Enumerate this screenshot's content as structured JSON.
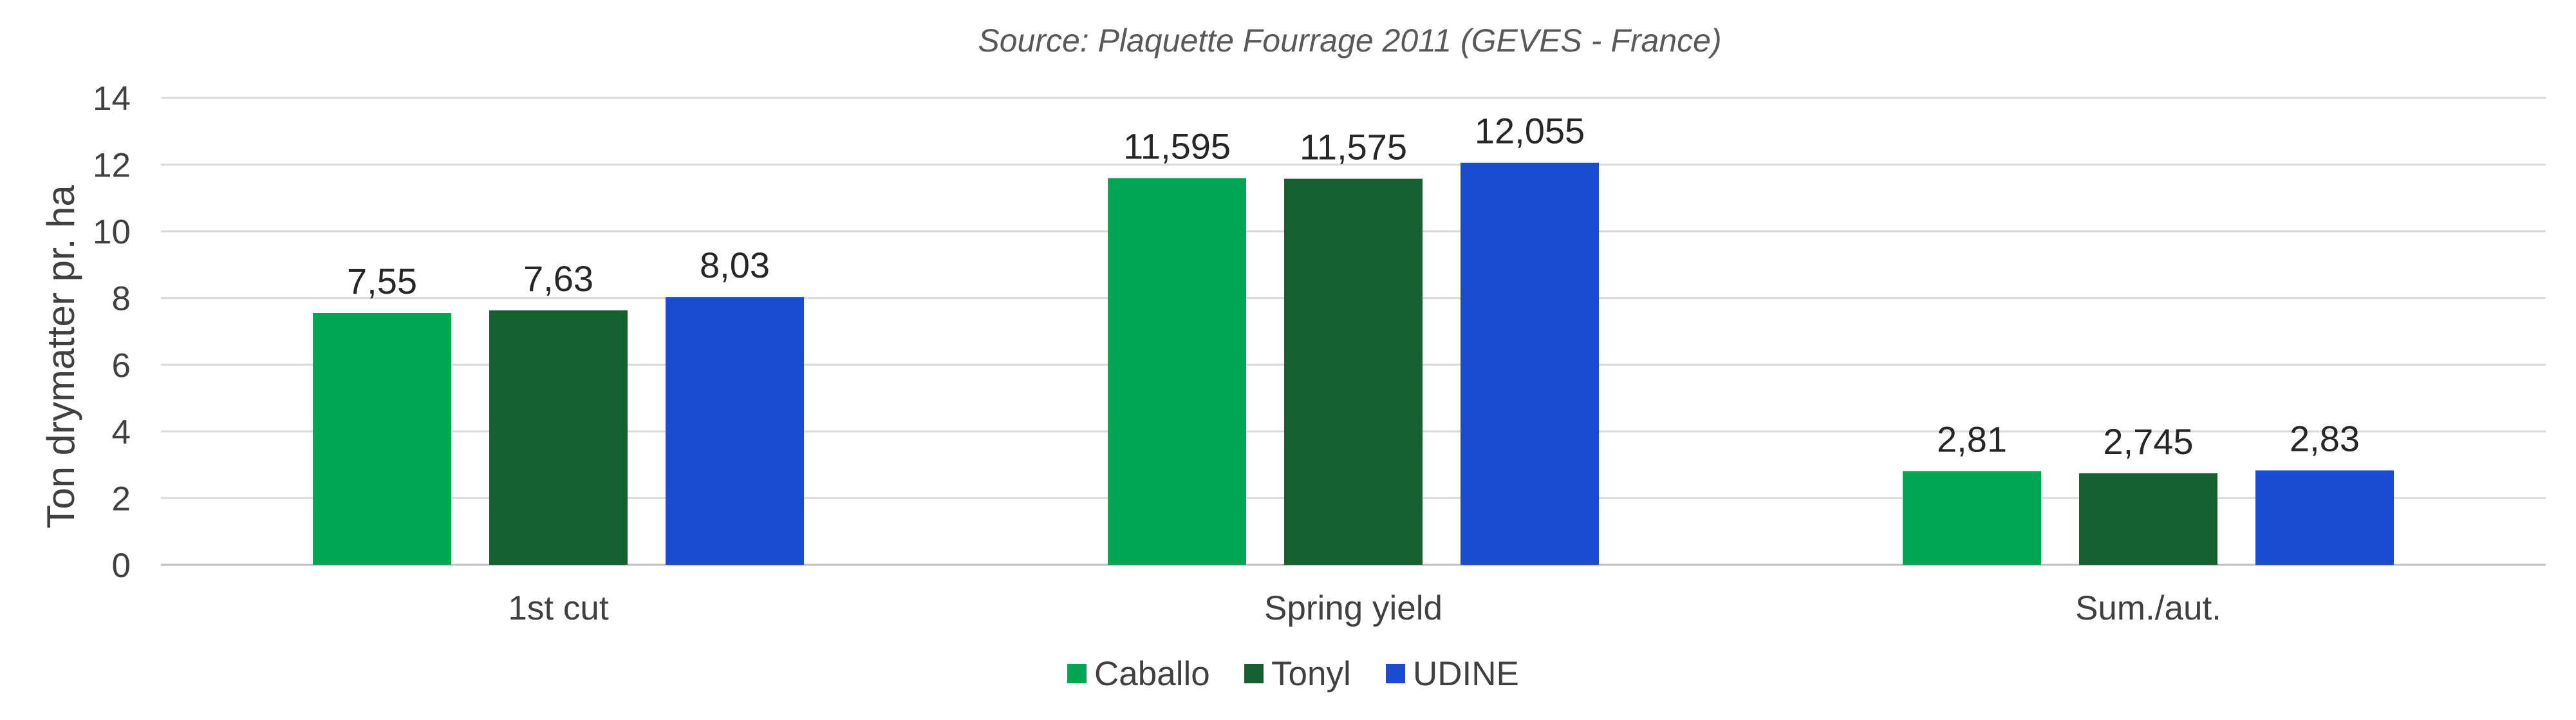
{
  "chart_data": {
    "type": "bar",
    "title": "Source: Plaquette Fourrage 2011 (GEVES - France)",
    "xlabel": "",
    "ylabel": "Ton drymatter pr. ha",
    "ylim": [
      0,
      14
    ],
    "yticks": [
      0,
      2,
      4,
      6,
      8,
      10,
      12,
      14
    ],
    "grid": true,
    "legend_position": "bottom",
    "categories": [
      "1st cut",
      "Spring yield",
      "Sum./aut."
    ],
    "series": [
      {
        "name": "Caballo",
        "color": "#00a651",
        "values": [
          7.55,
          11.595,
          2.81
        ],
        "labels": [
          "7,55",
          "11,595",
          "2,81"
        ]
      },
      {
        "name": "Tonyl",
        "color": "#15602e",
        "values": [
          7.63,
          11.575,
          2.745
        ],
        "labels": [
          "7,63",
          "11,575",
          "2,745"
        ]
      },
      {
        "name": "UDINE",
        "color": "#1a4bd0",
        "values": [
          8.03,
          12.055,
          2.83
        ],
        "labels": [
          "8,03",
          "12,055",
          "2,83"
        ]
      }
    ]
  }
}
